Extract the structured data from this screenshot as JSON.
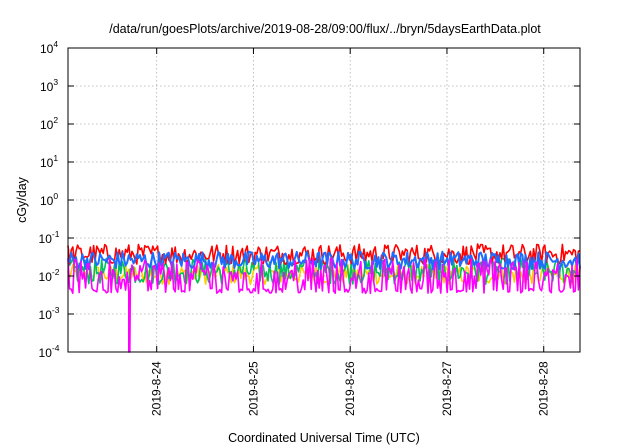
{
  "chart_data": {
    "type": "line",
    "title": "/data/run/goesPlots/archive/2019-08-28/09:00/flux/../bryn/5daysEarthData.plot",
    "xlabel": "Coordinated Universal Time (UTC)",
    "ylabel": "cGy/day",
    "y_scale": "log",
    "ylim": [
      0.0001,
      10000
    ],
    "y_ticks": [
      {
        "base": "10",
        "exp": "-4",
        "value": 0.0001
      },
      {
        "base": "10",
        "exp": "-3",
        "value": 0.001
      },
      {
        "base": "10",
        "exp": "-2",
        "value": 0.01
      },
      {
        "base": "10",
        "exp": "-1",
        "value": 0.1
      },
      {
        "base": "10",
        "exp": "0",
        "value": 1
      },
      {
        "base": "10",
        "exp": "1",
        "value": 10
      },
      {
        "base": "10",
        "exp": "2",
        "value": 100
      },
      {
        "base": "10",
        "exp": "3",
        "value": 1000
      },
      {
        "base": "10",
        "exp": "4",
        "value": 10000
      }
    ],
    "xlim": [
      "2019-08-23 02:00",
      "2019-08-28 09:00"
    ],
    "x_ticks": [
      "2019-8-24",
      "2019-8-25",
      "2019-8-26",
      "2019-8-27",
      "2019-8-28"
    ],
    "grid": true,
    "legend": "none",
    "series": [
      {
        "color": "#ff0000",
        "typical_range": [
          0.02,
          0.07
        ]
      },
      {
        "color": "#00c060",
        "typical_range": [
          0.006,
          0.03
        ]
      },
      {
        "color": "#ffcc00",
        "typical_range": [
          0.006,
          0.02
        ]
      },
      {
        "color": "#1e6cff",
        "typical_range": [
          0.015,
          0.045
        ]
      },
      {
        "color": "#ff00ff",
        "typical_range": [
          0.0035,
          0.03
        ],
        "note_dropout": "2019-08-23 17:00"
      }
    ]
  }
}
